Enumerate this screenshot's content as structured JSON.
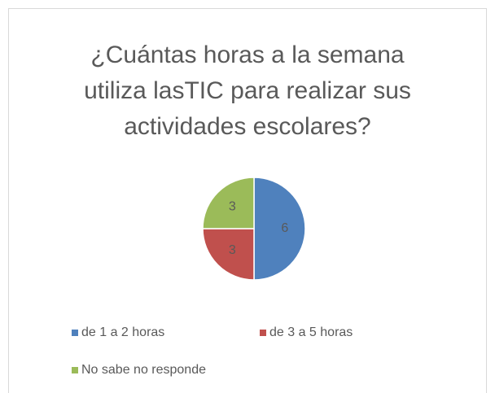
{
  "chart_data": {
    "type": "pie",
    "title": "¿Cuántas horas a la semana utiliza lasTIC para realizar sus actividades escolares?",
    "categories": [
      "de 1 a 2 horas",
      "de 3 a 5 horas",
      "No sabe no responde"
    ],
    "values": [
      6,
      3,
      3
    ],
    "colors": [
      "#4f81bd",
      "#c0504d",
      "#9bbb59"
    ],
    "legend": "bottom"
  }
}
